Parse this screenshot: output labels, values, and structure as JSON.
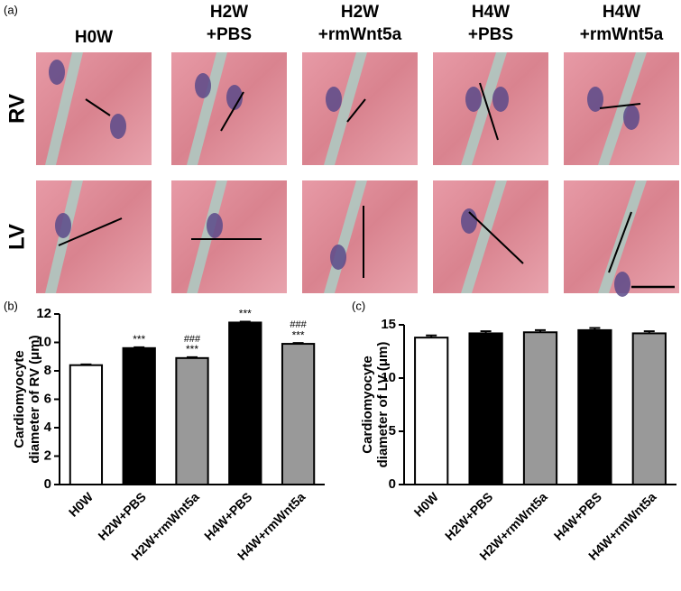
{
  "panel_labels": [
    "(a)",
    "(b)",
    "(c)"
  ],
  "histology": {
    "columns": [
      [
        "H0W"
      ],
      [
        "H2W",
        "+PBS"
      ],
      [
        "H2W",
        "+rmWnt5a"
      ],
      [
        "H4W",
        "+PBS"
      ],
      [
        "H4W",
        "+rmWnt5a"
      ]
    ],
    "rows": [
      "RV",
      "LV"
    ]
  },
  "chart_data": [
    {
      "type": "bar",
      "ylabel": [
        "Cardiomyocyte",
        "diameter of RV (μm)"
      ],
      "categories": [
        "H0W",
        "H2W+PBS",
        "H2W+rmWnt5a",
        "H4W+PBS",
        "H4W+rmWnt5a"
      ],
      "values": [
        8.4,
        9.6,
        8.9,
        11.4,
        9.9
      ],
      "errors": [
        0.05,
        0.06,
        0.06,
        0.06,
        0.06
      ],
      "colors": [
        "#ffffff",
        "#000000",
        "#999999",
        "#000000",
        "#999999"
      ],
      "sig_labels": [
        null,
        "***",
        "***",
        "***",
        "***"
      ],
      "hash_labels": [
        null,
        null,
        "###",
        null,
        "###"
      ],
      "ylim": [
        0,
        12
      ],
      "yticks": [
        0,
        2,
        4,
        6,
        8,
        10,
        12
      ]
    },
    {
      "type": "bar",
      "ylabel": [
        "Cardiomyocyte",
        "diameter of LV (μm)"
      ],
      "categories": [
        "H0W",
        "H2W+PBS",
        "H2W+rmWnt5a",
        "H4W+PBS",
        "H4W+rmWnt5a"
      ],
      "values": [
        13.8,
        14.2,
        14.3,
        14.5,
        14.2
      ],
      "errors": [
        0.2,
        0.2,
        0.2,
        0.2,
        0.2
      ],
      "colors": [
        "#ffffff",
        "#000000",
        "#999999",
        "#000000",
        "#999999"
      ],
      "ylim": [
        0,
        15
      ],
      "yticks": [
        0,
        5,
        10,
        15
      ]
    }
  ]
}
